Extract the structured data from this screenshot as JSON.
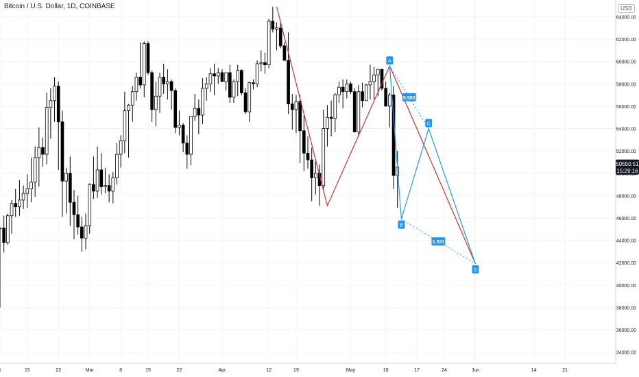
{
  "header": {
    "title": "Bitcoin / U.S. Dollar, 1D, COINBASE",
    "currency": "USD"
  },
  "price_tag": {
    "value": "50550.51",
    "countdown": "15:29:16"
  },
  "pattern": {
    "points": [
      {
        "label": "A",
        "day": 100,
        "price": 59600
      },
      {
        "label": "B",
        "day": 103,
        "price": 45900
      },
      {
        "label": "C",
        "day": 110,
        "price": 54000
      },
      {
        "label": "D",
        "day": 122,
        "price": 41900
      }
    ],
    "ratios": [
      {
        "label": "0.583",
        "from": "A",
        "to": "C"
      },
      {
        "label": "1.521",
        "from": "B",
        "to": "D"
      }
    ],
    "red_path": [
      {
        "day": 71,
        "price": 64900
      },
      {
        "day": 84,
        "price": 47100
      },
      {
        "day": 100,
        "price": 59600
      },
      {
        "day": 122,
        "price": 41900
      }
    ],
    "colors": {
      "bull": "#d32f2f",
      "blue": "#2196f3"
    }
  },
  "chart_data": {
    "type": "candlestick",
    "title": "Bitcoin / U.S. Dollar, 1D, COINBASE",
    "ylim": [
      33000,
      65500
    ],
    "yticks": [
      34000,
      36000,
      38000,
      40000,
      42000,
      44000,
      46000,
      48000,
      50000,
      52000,
      54000,
      56000,
      58000,
      60000,
      62000,
      64000
    ],
    "ytick_labels": [
      "34000.00",
      "36000.00",
      "38000.00",
      "40000.00",
      "42000.00",
      "44000.00",
      "46000.00",
      "48000.00",
      "50000.00",
      "52000.00",
      "54000.00",
      "56000.00",
      "58000.00",
      "60000.00",
      "62000.00",
      "64000.00"
    ],
    "xlim": [
      0,
      158
    ],
    "xticks": [
      {
        "day": 0,
        "label": "1"
      },
      {
        "day": 7,
        "label": "15"
      },
      {
        "day": 15,
        "label": "22"
      },
      {
        "day": 23,
        "label": "Mar"
      },
      {
        "day": 31,
        "label": "8"
      },
      {
        "day": 38,
        "label": "15"
      },
      {
        "day": 46,
        "label": "22"
      },
      {
        "day": 57,
        "label": "Apr"
      },
      {
        "day": 69,
        "label": "12"
      },
      {
        "day": 76,
        "label": "19"
      },
      {
        "day": 90,
        "label": "May"
      },
      {
        "day": 99,
        "label": "10"
      },
      {
        "day": 107,
        "label": "17"
      },
      {
        "day": 114,
        "label": "24"
      },
      {
        "day": 122,
        "label": "Jun"
      },
      {
        "day": 137,
        "label": "14"
      },
      {
        "day": 145,
        "label": "21"
      }
    ],
    "grid": true,
    "candles": [
      [
        45100,
        45100,
        38000,
        45100
      ],
      [
        45100,
        46200,
        42900,
        43800
      ],
      [
        43800,
        46400,
        43600,
        46200
      ],
      [
        46200,
        47600,
        44600,
        47300
      ],
      [
        47300,
        48600,
        46100,
        47000
      ],
      [
        47000,
        49400,
        46200,
        47600
      ],
      [
        47600,
        48900,
        46800,
        48200
      ],
      [
        48200,
        49900,
        46900,
        48600
      ],
      [
        48600,
        51400,
        47400,
        49200
      ],
      [
        49200,
        52400,
        47900,
        51400
      ],
      [
        51400,
        54100,
        48800,
        52300
      ],
      [
        52300,
        53200,
        50600,
        51700
      ],
      [
        51700,
        57200,
        50800,
        55900
      ],
      [
        55900,
        57600,
        53100,
        56500
      ],
      [
        56500,
        58600,
        54600,
        57800
      ],
      [
        57800,
        58200,
        50300,
        54600
      ],
      [
        54600,
        55600,
        46100,
        49300
      ],
      [
        49300,
        50500,
        46400,
        50000
      ],
      [
        50000,
        51500,
        45300,
        47400
      ],
      [
        47400,
        48500,
        44100,
        46300
      ],
      [
        46300,
        48000,
        44500,
        45200
      ],
      [
        45200,
        46100,
        43000,
        44200
      ],
      [
        44200,
        46400,
        43200,
        45300
      ],
      [
        45300,
        49100,
        44600,
        49000
      ],
      [
        49000,
        51500,
        47700,
        48400
      ],
      [
        48400,
        52400,
        47800,
        50300
      ],
      [
        50300,
        51800,
        48100,
        48800
      ],
      [
        48800,
        50500,
        48200,
        48900
      ],
      [
        48900,
        49900,
        47400,
        48400
      ],
      [
        48400,
        50100,
        47300,
        49600
      ],
      [
        49600,
        52700,
        49000,
        51700
      ],
      [
        51700,
        53400,
        50500,
        52900
      ],
      [
        52900,
        57300,
        51800,
        55600
      ],
      [
        55600,
        56200,
        51400,
        56100
      ],
      [
        56100,
        57800,
        54600,
        57300
      ],
      [
        57300,
        59000,
        56500,
        58600
      ],
      [
        58600,
        61700,
        57600,
        57900
      ],
      [
        57900,
        61800,
        56800,
        61600
      ],
      [
        61600,
        61800,
        58800,
        59000
      ],
      [
        59000,
        59200,
        54600,
        55700
      ],
      [
        55700,
        58200,
        54200,
        56900
      ],
      [
        56900,
        59000,
        55400,
        58600
      ],
      [
        58600,
        59800,
        57100,
        58000
      ],
      [
        58000,
        59300,
        56600,
        58200
      ],
      [
        58200,
        58400,
        55700,
        57400
      ],
      [
        57400,
        57600,
        53600,
        54100
      ],
      [
        54100,
        55600,
        53400,
        54300
      ],
      [
        54300,
        54500,
        51900,
        52700
      ],
      [
        52700,
        53400,
        50400,
        51700
      ],
      [
        51700,
        55100,
        50700,
        55100
      ],
      [
        55100,
        57100,
        54700,
        55800
      ],
      [
        55800,
        56600,
        53500,
        55200
      ],
      [
        55200,
        58500,
        54400,
        57600
      ],
      [
        57600,
        58600,
        56500,
        58000
      ],
      [
        58000,
        59400,
        57300,
        58900
      ],
      [
        58900,
        59800,
        57000,
        58700
      ],
      [
        58700,
        59400,
        58000,
        59000
      ],
      [
        59000,
        59300,
        58500,
        58200
      ],
      [
        58200,
        59000,
        57400,
        59000
      ],
      [
        59000,
        59700,
        56300,
        56800
      ],
      [
        56800,
        58400,
        56300,
        58200
      ],
      [
        58200,
        59700,
        56900,
        59200
      ],
      [
        59200,
        59300,
        57000,
        57200
      ],
      [
        57200,
        57600,
        55300,
        55500
      ],
      [
        55500,
        58200,
        54600,
        58100
      ],
      [
        58100,
        58400,
        57500,
        58000
      ],
      [
        58000,
        60100,
        57700,
        59800
      ],
      [
        59800,
        61000,
        59100,
        59900
      ],
      [
        59900,
        60800,
        58900,
        59700
      ],
      [
        59700,
        63800,
        59400,
        63600
      ],
      [
        63600,
        64900,
        62600,
        62900
      ],
      [
        62900,
        63500,
        61000,
        63000
      ],
      [
        63000,
        63600,
        61200,
        61400
      ],
      [
        61400,
        61700,
        60100,
        60100
      ],
      [
        60100,
        62600,
        55300,
        56200
      ],
      [
        56200,
        57100,
        53900,
        55700
      ],
      [
        55700,
        57000,
        53600,
        56400
      ],
      [
        56400,
        57000,
        50900,
        53800
      ],
      [
        53800,
        55200,
        50200,
        51800
      ],
      [
        51800,
        53300,
        50400,
        51200
      ],
      [
        51200,
        52300,
        47500,
        49600
      ],
      [
        49600,
        51100,
        48100,
        50000
      ],
      [
        50000,
        50800,
        47100,
        48900
      ],
      [
        48900,
        55700,
        48500,
        54000
      ],
      [
        54000,
        56100,
        52400,
        55000
      ],
      [
        55000,
        56500,
        53300,
        54900
      ],
      [
        54900,
        57200,
        53700,
        57000
      ],
      [
        57000,
        58200,
        56300,
        57700
      ],
      [
        57700,
        58400,
        55800,
        57300
      ],
      [
        57300,
        58400,
        56700,
        58000
      ],
      [
        58000,
        58200,
        57100,
        57300
      ],
      [
        57300,
        57600,
        53700,
        53700
      ],
      [
        53700,
        57900,
        53300,
        57300
      ],
      [
        57300,
        58100,
        55900,
        56500
      ],
      [
        56500,
        58000,
        56500,
        57900
      ],
      [
        57900,
        59700,
        56600,
        58200
      ],
      [
        58200,
        59500,
        56600,
        58800
      ],
      [
        58800,
        59300,
        56900,
        59300
      ],
      [
        59300,
        59300,
        57400,
        57600
      ],
      [
        57600,
        58200,
        56000,
        56000
      ],
      [
        56000,
        57200,
        54100,
        57000
      ],
      [
        57000,
        57800,
        48600,
        49800
      ],
      [
        49800,
        52000,
        46900,
        50550
      ]
    ]
  }
}
